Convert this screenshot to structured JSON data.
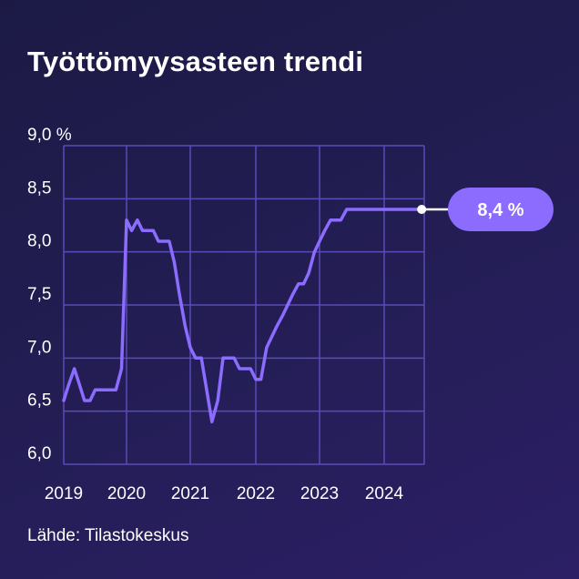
{
  "title": "Työttömyysasteen trendi",
  "source": "Lähde: Tilastokeskus",
  "colors": {
    "line": "#8b6cff",
    "grid": "#5a4bb8",
    "callout_bg": "#8b6cff",
    "text": "#ffffff"
  },
  "chart_data": {
    "type": "line",
    "title": "Työttömyysasteen trendi",
    "xlabel": "",
    "ylabel": "",
    "ylim": [
      6.0,
      9.0
    ],
    "xlim": [
      2019.0,
      2024.65
    ],
    "y_ticks": [
      {
        "value": 9.0,
        "label": "9,0 %"
      },
      {
        "value": 8.5,
        "label": "8,5"
      },
      {
        "value": 8.0,
        "label": "8,0"
      },
      {
        "value": 7.5,
        "label": "7,5"
      },
      {
        "value": 7.0,
        "label": "7,0"
      },
      {
        "value": 6.5,
        "label": "6,5"
      },
      {
        "value": 6.0,
        "label": "6,0"
      }
    ],
    "x_ticks": [
      {
        "value": 2019,
        "label": "2019"
      },
      {
        "value": 2020,
        "label": "2020"
      },
      {
        "value": 2021,
        "label": "2021"
      },
      {
        "value": 2022,
        "label": "2022"
      },
      {
        "value": 2023,
        "label": "2023"
      },
      {
        "value": 2024,
        "label": "2024"
      }
    ],
    "grid": true,
    "series": [
      {
        "x": [
          2019.0,
          2019.08,
          2019.17,
          2019.25,
          2019.33,
          2019.42,
          2019.5,
          2019.58,
          2019.67,
          2019.75,
          2019.83,
          2019.92,
          2020.0,
          2020.08,
          2020.17,
          2020.25,
          2020.33,
          2020.42,
          2020.5,
          2020.58,
          2020.67,
          2020.75,
          2020.83,
          2020.92,
          2021.0,
          2021.08,
          2021.17,
          2021.25,
          2021.33,
          2021.42,
          2021.5,
          2021.58,
          2021.67,
          2021.75,
          2021.83,
          2021.92,
          2022.0,
          2022.08,
          2022.17,
          2022.25,
          2022.33,
          2022.42,
          2022.5,
          2022.58,
          2022.67,
          2022.75,
          2022.83,
          2022.92,
          2023.0,
          2023.08,
          2023.17,
          2023.25,
          2023.33,
          2023.42,
          2023.5,
          2023.58,
          2023.67,
          2023.75,
          2023.83,
          2023.92,
          2024.0,
          2024.08,
          2024.17,
          2024.25,
          2024.33,
          2024.42,
          2024.5,
          2024.58
        ],
        "values": [
          6.6,
          6.75,
          6.9,
          6.75,
          6.6,
          6.6,
          6.7,
          6.7,
          6.7,
          6.7,
          6.7,
          6.9,
          8.3,
          8.2,
          8.3,
          8.2,
          8.2,
          8.2,
          8.1,
          8.1,
          8.1,
          7.9,
          7.6,
          7.3,
          7.1,
          7.0,
          7.0,
          6.7,
          6.4,
          6.6,
          7.0,
          7.0,
          7.0,
          6.9,
          6.9,
          6.9,
          6.8,
          6.8,
          7.1,
          7.2,
          7.3,
          7.4,
          7.5,
          7.6,
          7.7,
          7.7,
          7.8,
          8.0,
          8.1,
          8.2,
          8.3,
          8.3,
          8.3,
          8.4,
          8.4,
          8.4,
          8.4,
          8.4,
          8.4,
          8.4,
          8.4,
          8.4,
          8.4,
          8.4,
          8.4,
          8.4,
          8.4,
          8.4
        ]
      }
    ],
    "annotation": {
      "x": 2024.58,
      "value": 8.4,
      "label": "8,4 %"
    }
  }
}
